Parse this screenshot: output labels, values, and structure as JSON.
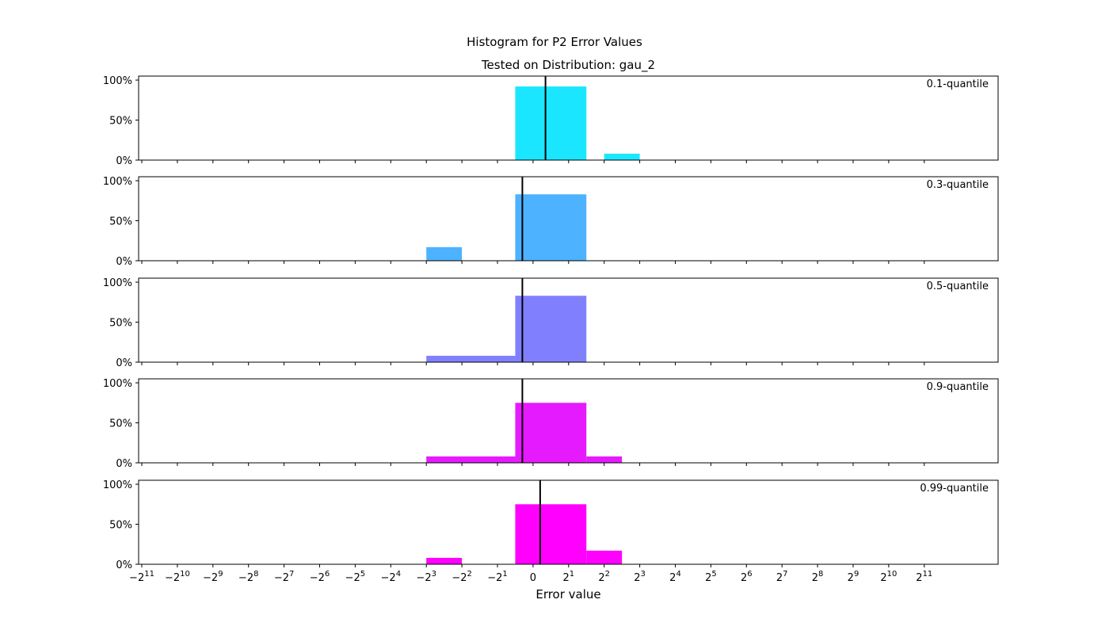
{
  "chart_data": {
    "type": "bar",
    "title": "Histogram for P2 Error Values",
    "subtitle": "Tested on Distribution: gau_2",
    "xlabel": "Error value",
    "ylabel": "",
    "xscale": "symlog base 2",
    "xlim_exp": [
      -11,
      11
    ],
    "ylim": [
      0,
      105
    ],
    "yticks": [
      "0%",
      "50%",
      "100%"
    ],
    "xticks": [
      {
        "base": "−2",
        "exp": "11"
      },
      {
        "base": "−2",
        "exp": "10"
      },
      {
        "base": "−2",
        "exp": "9"
      },
      {
        "base": "−2",
        "exp": "8"
      },
      {
        "base": "−2",
        "exp": "7"
      },
      {
        "base": "−2",
        "exp": "6"
      },
      {
        "base": "−2",
        "exp": "5"
      },
      {
        "base": "−2",
        "exp": "4"
      },
      {
        "base": "−2",
        "exp": "3"
      },
      {
        "base": "−2",
        "exp": "2"
      },
      {
        "base": "−2",
        "exp": "1"
      },
      {
        "base": "0",
        "exp": ""
      },
      {
        "base": "2",
        "exp": "1"
      },
      {
        "base": "2",
        "exp": "2"
      },
      {
        "base": "2",
        "exp": "3"
      },
      {
        "base": "2",
        "exp": "4"
      },
      {
        "base": "2",
        "exp": "5"
      },
      {
        "base": "2",
        "exp": "6"
      },
      {
        "base": "2",
        "exp": "7"
      },
      {
        "base": "2",
        "exp": "8"
      },
      {
        "base": "2",
        "exp": "9"
      },
      {
        "base": "2",
        "exp": "10"
      },
      {
        "base": "2",
        "exp": "11"
      }
    ],
    "grid": false,
    "series": [
      {
        "name": "0.1-quantile",
        "color": "#1ae6ff",
        "marker": 0.35,
        "bars": [
          {
            "from": -0.5,
            "to": 1.5,
            "value": 92
          },
          {
            "from": 2,
            "to": 3,
            "value": 8
          }
        ]
      },
      {
        "name": "0.3-quantile",
        "color": "#4db2ff",
        "marker": -0.3,
        "bars": [
          {
            "from": -3,
            "to": -2,
            "value": 17
          },
          {
            "from": -0.5,
            "to": 1.5,
            "value": 83
          }
        ]
      },
      {
        "name": "0.5-quantile",
        "color": "#8080ff",
        "marker": -0.3,
        "bars": [
          {
            "from": -3,
            "to": -0.5,
            "value": 8
          },
          {
            "from": -0.5,
            "to": 1.5,
            "value": 83
          }
        ]
      },
      {
        "name": "0.9-quantile",
        "color": "#e61aff",
        "marker": -0.3,
        "bars": [
          {
            "from": -3,
            "to": -0.5,
            "value": 8
          },
          {
            "from": -0.5,
            "to": 1.5,
            "value": 75
          },
          {
            "from": 1.5,
            "to": 2.5,
            "value": 8
          }
        ]
      },
      {
        "name": "0.99-quantile",
        "color": "#ff00ff",
        "marker": 0.2,
        "bars": [
          {
            "from": -3,
            "to": -2,
            "value": 8
          },
          {
            "from": -0.5,
            "to": 1.5,
            "value": 75
          },
          {
            "from": 1.5,
            "to": 2.5,
            "value": 17
          }
        ]
      }
    ]
  }
}
